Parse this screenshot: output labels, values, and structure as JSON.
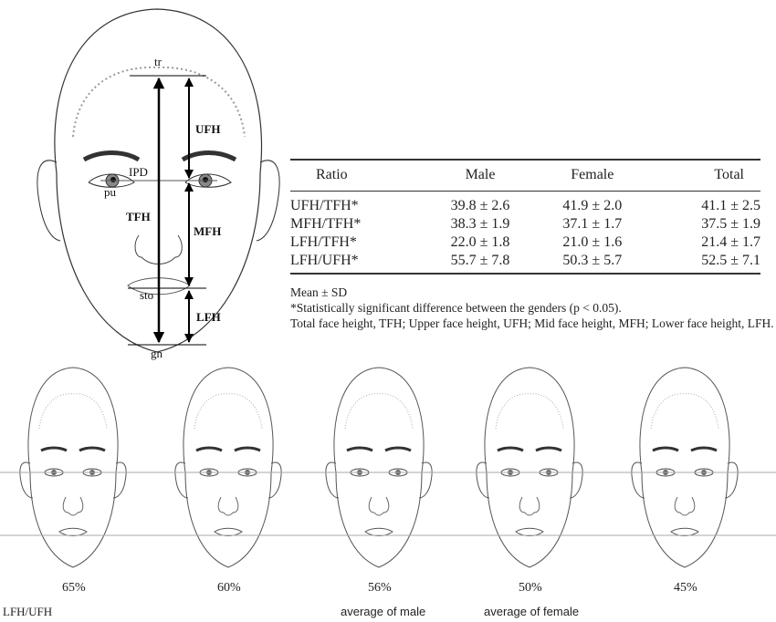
{
  "diagram": {
    "landmarks": {
      "tr": "tr",
      "ipd": "IPD",
      "pu": "pu",
      "sto": "sto",
      "gn": "gn"
    },
    "measures": {
      "ufh": "UFH",
      "mfh": "MFH",
      "lfh": "LFH",
      "tfh": "TFH"
    }
  },
  "table": {
    "headers": [
      "Ratio",
      "Male",
      "Female",
      "Total"
    ],
    "rows": [
      [
        "UFH/TFH*",
        "39.8 ± 2.6",
        "41.9 ± 2.0",
        "41.1 ± 2.5"
      ],
      [
        "MFH/TFH*",
        "38.3 ± 1.9",
        "37.1 ± 1.7",
        "37.5 ± 1.9"
      ],
      [
        "LFH/TFH*",
        "22.0 ± 1.8",
        "21.0 ± 1.6",
        "21.4 ± 1.7"
      ],
      [
        "LFH/UFH*",
        "55.7 ± 7.8",
        "50.3 ± 5.7",
        "52.5 ± 7.1"
      ]
    ],
    "notes": [
      "Mean ± SD",
      "*Statistically significant difference between the genders (p < 0.05).",
      "Total face height, TFH; Upper face height, UFH; Mid face height, MFH; Lower face height, LFH."
    ]
  },
  "faces": {
    "axis_label": "LFH/UFH",
    "items": [
      {
        "percent": "65%",
        "caption": ""
      },
      {
        "percent": "60%",
        "caption": ""
      },
      {
        "percent": "56%",
        "caption": "average of male"
      },
      {
        "percent": "50%",
        "caption": "average of female"
      },
      {
        "percent": "45%",
        "caption": ""
      }
    ]
  }
}
